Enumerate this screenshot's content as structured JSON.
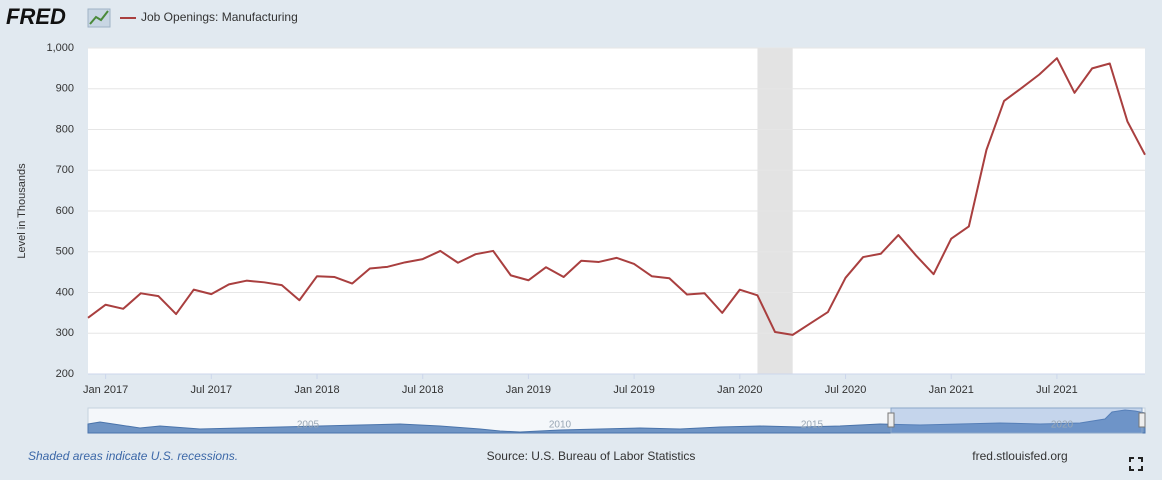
{
  "chart_data": {
    "type": "line",
    "logo": "FRED",
    "ylabel": "Level in Thousands",
    "x": [
      "2016-12",
      "2017-01",
      "2017-02",
      "2017-03",
      "2017-04",
      "2017-05",
      "2017-06",
      "2017-07",
      "2017-08",
      "2017-09",
      "2017-10",
      "2017-11",
      "2017-12",
      "2018-01",
      "2018-02",
      "2018-03",
      "2018-04",
      "2018-05",
      "2018-06",
      "2018-07",
      "2018-08",
      "2018-09",
      "2018-10",
      "2018-11",
      "2018-12",
      "2019-01",
      "2019-02",
      "2019-03",
      "2019-04",
      "2019-05",
      "2019-06",
      "2019-07",
      "2019-08",
      "2019-09",
      "2019-10",
      "2019-11",
      "2019-12",
      "2020-01",
      "2020-02",
      "2020-03",
      "2020-04",
      "2020-05",
      "2020-06",
      "2020-07",
      "2020-08",
      "2020-09",
      "2020-10",
      "2020-11",
      "2020-12",
      "2021-01",
      "2021-02",
      "2021-03",
      "2021-04",
      "2021-05",
      "2021-06",
      "2021-07",
      "2021-08",
      "2021-09",
      "2021-10",
      "2021-11",
      "2021-12"
    ],
    "series": [
      {
        "name": "Job Openings: Manufacturing",
        "color": "#a93f3f",
        "values": [
          338,
          370,
          360,
          398,
          391,
          347,
          407,
          396,
          420,
          429,
          425,
          418,
          381,
          440,
          438,
          422,
          459,
          463,
          474,
          482,
          502,
          473,
          494,
          502,
          442,
          430,
          462,
          438,
          478,
          475,
          485,
          470,
          440,
          435,
          395,
          398,
          350,
          407,
          393,
          303,
          296,
          324,
          352,
          436,
          487,
          495,
          541,
          491,
          445,
          532,
          562,
          750,
          870,
          902,
          935,
          975,
          890,
          950,
          962,
          820,
          738
        ]
      }
    ],
    "xlim": [
      "2016-12",
      "2021-12"
    ],
    "xticks": [
      {
        "value": "2017-01",
        "label": "Jan 2017"
      },
      {
        "value": "2017-07",
        "label": "Jul 2017"
      },
      {
        "value": "2018-01",
        "label": "Jan 2018"
      },
      {
        "value": "2018-07",
        "label": "Jul 2018"
      },
      {
        "value": "2019-01",
        "label": "Jan 2019"
      },
      {
        "value": "2019-07",
        "label": "Jul 2019"
      },
      {
        "value": "2020-01",
        "label": "Jan 2020"
      },
      {
        "value": "2020-07",
        "label": "Jul 2020"
      },
      {
        "value": "2021-01",
        "label": "Jan 2021"
      },
      {
        "value": "2021-07",
        "label": "Jul 2021"
      }
    ],
    "ylim": [
      200,
      1000
    ],
    "yticks": [
      200,
      300,
      400,
      500,
      600,
      700,
      800,
      900,
      {
        "value": 1000,
        "label": "1,000"
      }
    ],
    "grid": true,
    "recessions": [
      {
        "start": "2020-02",
        "end": "2020-04"
      }
    ],
    "navigator_labels": [
      "2005",
      "2010",
      "2015",
      "2020"
    ],
    "footer": {
      "note": "Shaded areas indicate U.S. recessions.",
      "source": "Source: U.S. Bureau of Labor Statistics",
      "site": "fred.stlouisfed.org"
    }
  }
}
